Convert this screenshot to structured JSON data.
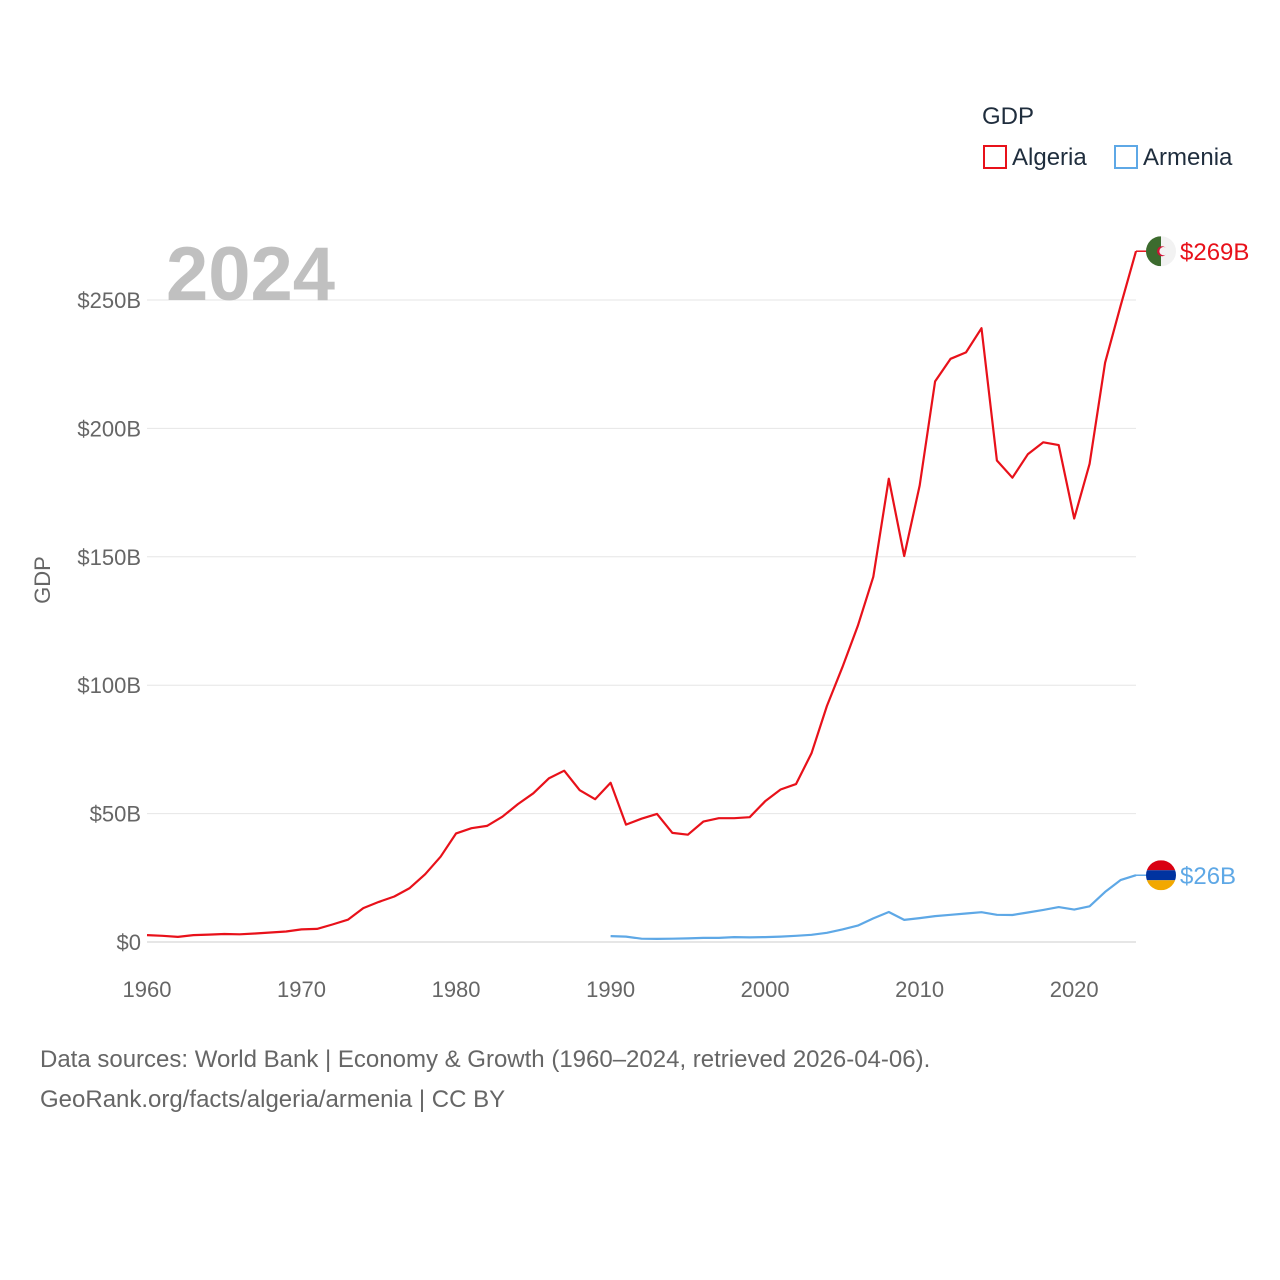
{
  "chart_data": {
    "type": "line",
    "year_label": "2024",
    "ylabel": "GDP",
    "legend": {
      "title": "GDP",
      "position": "top-right"
    },
    "xlim": [
      1960,
      2024
    ],
    "ylim": [
      0,
      250
    ],
    "y_unit": "billion USD",
    "x_ticks": [
      "1960",
      "1970",
      "1980",
      "1990",
      "2000",
      "2010",
      "2020"
    ],
    "y_ticks": [
      {
        "value": 0,
        "label": "$0"
      },
      {
        "value": 50,
        "label": "$50B"
      },
      {
        "value": 100,
        "label": "$100B"
      },
      {
        "value": 150,
        "label": "$150B"
      },
      {
        "value": 200,
        "label": "$200B"
      },
      {
        "value": 250,
        "label": "$250B"
      }
    ],
    "series": [
      {
        "name": "Algeria",
        "color": "#e8111a",
        "end_label": "$269B",
        "flag": "algeria-flag",
        "x": [
          1960,
          1961,
          1962,
          1963,
          1964,
          1965,
          1966,
          1967,
          1968,
          1969,
          1970,
          1971,
          1972,
          1973,
          1974,
          1975,
          1976,
          1977,
          1978,
          1979,
          1980,
          1981,
          1982,
          1983,
          1984,
          1985,
          1986,
          1987,
          1988,
          1989,
          1990,
          1991,
          1992,
          1993,
          1994,
          1995,
          1996,
          1997,
          1998,
          1999,
          2000,
          2001,
          2002,
          2003,
          2004,
          2005,
          2006,
          2007,
          2008,
          2009,
          2010,
          2011,
          2012,
          2013,
          2014,
          2015,
          2016,
          2017,
          2018,
          2019,
          2020,
          2021,
          2022,
          2023,
          2024
        ],
        "values": [
          2.7,
          2.4,
          2.0,
          2.7,
          2.9,
          3.1,
          3.0,
          3.3,
          3.7,
          4.1,
          4.9,
          5.1,
          6.8,
          8.7,
          13.2,
          15.6,
          17.7,
          21.0,
          26.4,
          33.2,
          42.3,
          44.3,
          45.2,
          48.8,
          53.7,
          57.9,
          63.7,
          66.7,
          59.1,
          55.6,
          62.0,
          45.7,
          48.0,
          49.9,
          42.5,
          41.8,
          46.9,
          48.2,
          48.2,
          48.6,
          54.8,
          59.4,
          61.5,
          73.5,
          91.9,
          107.0,
          123.1,
          142.2,
          180.4,
          150.3,
          177.8,
          218.3,
          227.1,
          229.6,
          239.0,
          187.5,
          180.8,
          189.9,
          194.6,
          193.5,
          164.9,
          186.2,
          225.6,
          247.6,
          269.0
        ]
      },
      {
        "name": "Armenia",
        "color": "#5ea8e6",
        "end_label": "$26B",
        "flag": "armenia-flag",
        "x": [
          1990,
          1991,
          1992,
          1993,
          1994,
          1995,
          1996,
          1997,
          1998,
          1999,
          2000,
          2001,
          2002,
          2003,
          2004,
          2005,
          2006,
          2007,
          2008,
          2009,
          2010,
          2011,
          2012,
          2013,
          2014,
          2015,
          2016,
          2017,
          2018,
          2019,
          2020,
          2021,
          2022,
          2023,
          2024
        ],
        "values": [
          2.3,
          2.1,
          1.3,
          1.2,
          1.3,
          1.4,
          1.6,
          1.6,
          1.9,
          1.8,
          1.9,
          2.1,
          2.4,
          2.8,
          3.6,
          4.9,
          6.4,
          9.2,
          11.7,
          8.6,
          9.3,
          10.1,
          10.6,
          11.1,
          11.6,
          10.6,
          10.5,
          11.5,
          12.5,
          13.6,
          12.6,
          13.9,
          19.5,
          24.1,
          26.0
        ]
      }
    ]
  },
  "footer": {
    "line1": "Data sources: World Bank | Economy & Growth (1960–2024, retrieved 2026-04-06).",
    "line2": "GeoRank.org/facts/algeria/armenia | CC BY"
  }
}
